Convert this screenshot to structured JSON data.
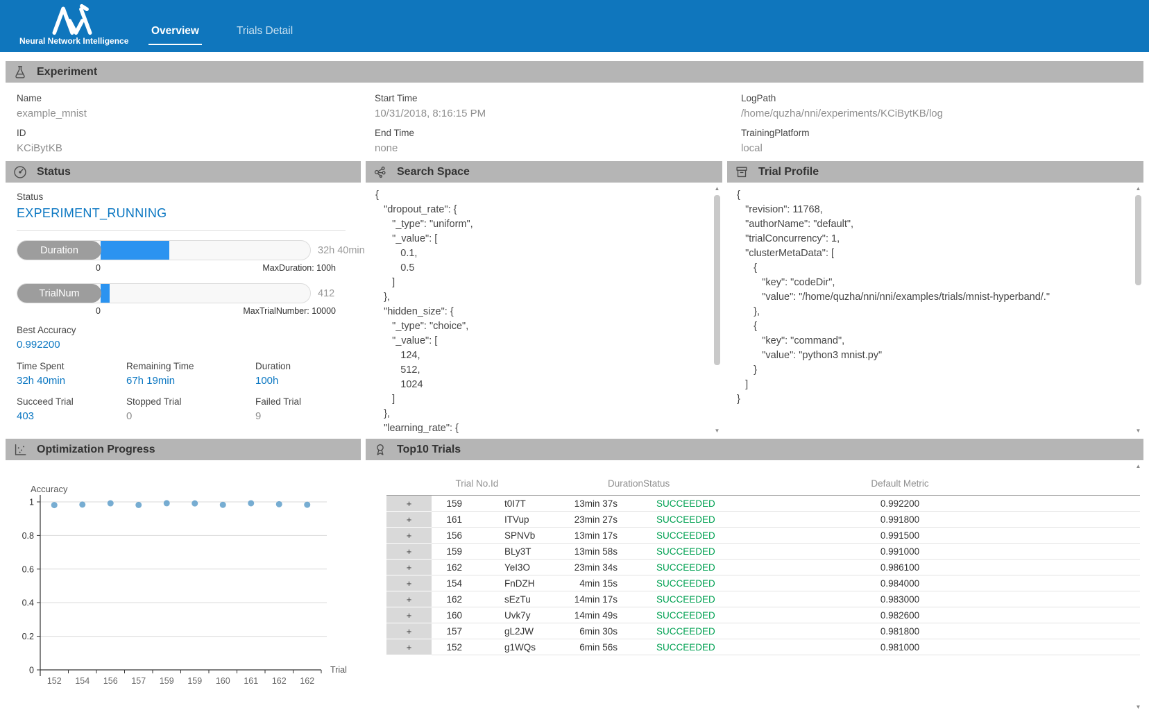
{
  "nav": {
    "brand": "Neural Network Intelligence",
    "tabs": [
      {
        "label": "Overview",
        "active": true
      },
      {
        "label": "Trials Detail",
        "active": false
      }
    ]
  },
  "experiment": {
    "title": "Experiment",
    "fields": [
      {
        "label": "Name",
        "value": "example_mnist"
      },
      {
        "label": "ID",
        "value": "KCiBytKB"
      },
      {
        "label": "Start Time",
        "value": "10/31/2018, 8:16:15 PM"
      },
      {
        "label": "End Time",
        "value": "none"
      },
      {
        "label": "LogPath",
        "value": "/home/quzha/nni/experiments/KCiBytKB/log"
      },
      {
        "label": "TrainingPlatform",
        "value": "local"
      }
    ]
  },
  "status_panel": {
    "title": "Status",
    "status_label": "Status",
    "status_value": "EXPERIMENT_RUNNING",
    "bars": [
      {
        "label": "Duration",
        "value_text": "32h 40min",
        "min": "0",
        "max_label": "MaxDuration: 100h",
        "percent": 32.67
      },
      {
        "label": "TrialNum",
        "value_text": "412",
        "min": "0",
        "max_label": "MaxTrialNumber: 10000",
        "percent": 4.12
      }
    ],
    "best_accuracy": {
      "label": "Best Accuracy",
      "value": "0.992200"
    },
    "stats": [
      {
        "label": "Time Spent",
        "value": "32h 40min",
        "accent": true
      },
      {
        "label": "Remaining Time",
        "value": "67h 19min",
        "accent": true
      },
      {
        "label": "Duration",
        "value": "100h",
        "accent": true
      },
      {
        "label": "Succeed Trial",
        "value": "403",
        "accent": true
      },
      {
        "label": "Stopped Trial",
        "value": "0",
        "accent": false
      },
      {
        "label": "Failed Trial",
        "value": "9",
        "accent": false
      }
    ]
  },
  "search_space": {
    "title": "Search Space",
    "code": [
      "{",
      "   \"dropout_rate\": {",
      "      \"_type\": \"uniform\",",
      "      \"_value\": [",
      "         0.1,",
      "         0.5",
      "      ]",
      "   },",
      "   \"hidden_size\": {",
      "      \"_type\": \"choice\",",
      "      \"_value\": [",
      "         124,",
      "         512,",
      "         1024",
      "      ]",
      "   },",
      "   \"learning_rate\": {"
    ]
  },
  "trial_profile": {
    "title": "Trial Profile",
    "code": [
      "{",
      "   \"revision\": 11768,",
      "   \"authorName\": \"default\",",
      "   \"trialConcurrency\": 1,",
      "   \"clusterMetaData\": [",
      "      {",
      "         \"key\": \"codeDir\",",
      "         \"value\": \"/home/quzha/nni/nni/examples/trials/mnist-hyperband/.\"",
      "      },",
      "      {",
      "         \"key\": \"command\",",
      "         \"value\": \"python3 mnist.py\"",
      "      }",
      "   ]",
      "}"
    ]
  },
  "optimization": {
    "title": "Optimization Progress"
  },
  "chart_data": {
    "type": "scatter",
    "title": "Optimization Progress",
    "ylabel": "Accuracy",
    "xlabel": "Trial",
    "categories": [
      "152",
      "154",
      "156",
      "157",
      "159",
      "159",
      "160",
      "161",
      "162",
      "162"
    ],
    "values": [
      0.981,
      0.984,
      0.9915,
      0.9818,
      0.9922,
      0.991,
      0.9826,
      0.9918,
      0.9861,
      0.983
    ],
    "ylim": [
      0,
      1
    ],
    "yticks": [
      0,
      0.2,
      0.4,
      0.6,
      0.8,
      1
    ],
    "grid": true,
    "legend_position": "none",
    "point_color": "#5f9fca"
  },
  "top_trials": {
    "title": "Top10 Trials",
    "expand_label": "+",
    "columns": [
      "",
      "Trial No.",
      "Id",
      "Duration",
      "Status",
      "Default Metric"
    ],
    "rows": [
      {
        "trial_no": "159",
        "id": "t0I7T",
        "duration": "13min 37s",
        "status": "SUCCEEDED",
        "metric": "0.992200"
      },
      {
        "trial_no": "161",
        "id": "ITVup",
        "duration": "23min 27s",
        "status": "SUCCEEDED",
        "metric": "0.991800"
      },
      {
        "trial_no": "156",
        "id": "SPNVb",
        "duration": "13min 17s",
        "status": "SUCCEEDED",
        "metric": "0.991500"
      },
      {
        "trial_no": "159",
        "id": "BLy3T",
        "duration": "13min 58s",
        "status": "SUCCEEDED",
        "metric": "0.991000"
      },
      {
        "trial_no": "162",
        "id": "YeI3O",
        "duration": "23min 34s",
        "status": "SUCCEEDED",
        "metric": "0.986100"
      },
      {
        "trial_no": "154",
        "id": "FnDZH",
        "duration": "4min 15s",
        "status": "SUCCEEDED",
        "metric": "0.984000"
      },
      {
        "trial_no": "162",
        "id": "sEzTu",
        "duration": "14min 17s",
        "status": "SUCCEEDED",
        "metric": "0.983000"
      },
      {
        "trial_no": "160",
        "id": "Uvk7y",
        "duration": "14min 49s",
        "status": "SUCCEEDED",
        "metric": "0.982600"
      },
      {
        "trial_no": "157",
        "id": "gL2JW",
        "duration": "6min 30s",
        "status": "SUCCEEDED",
        "metric": "0.981800"
      },
      {
        "trial_no": "152",
        "id": "g1WQs",
        "duration": "6min 56s",
        "status": "SUCCEEDED",
        "metric": "0.981000"
      }
    ]
  },
  "icons": {
    "scroll_up": "▲",
    "scroll_down": "▼"
  },
  "colors": {
    "header_blue": "#0f76bd",
    "accent_blue": "#0b77c2",
    "progress_fill": "#2b93f0",
    "section_gray": "#b5b5b5",
    "success_green": "#00a152",
    "dot_blue": "#5f9fca"
  }
}
